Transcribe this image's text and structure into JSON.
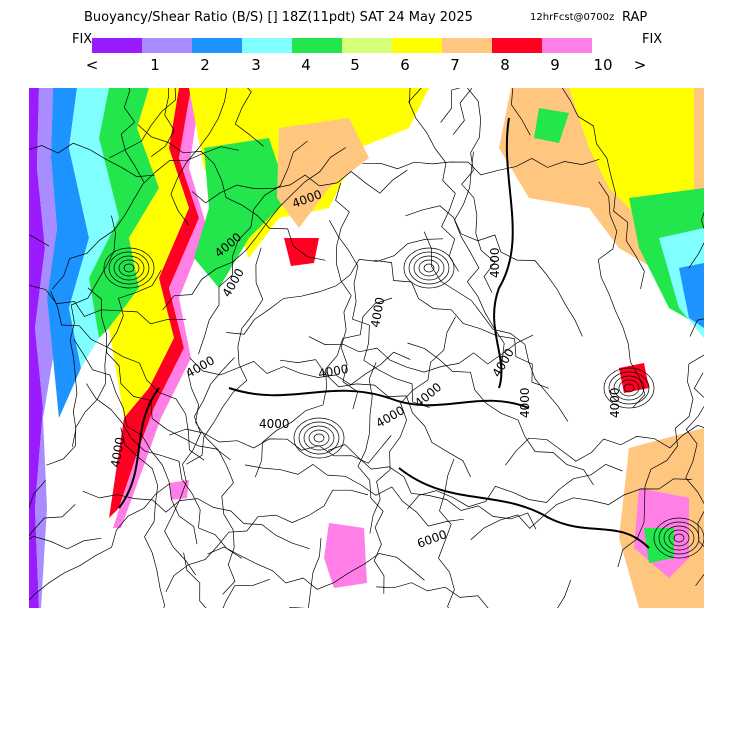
{
  "header": {
    "title": "Buoyancy/Shear Ratio (B/S) [] 18Z(11pdt) SAT 24 May 2025",
    "forecast_note": "12hrFcst@0700z",
    "model": "RAP"
  },
  "legend": {
    "fix_left": "FIX",
    "fix_right": "FIX",
    "colors": [
      "#9b1bff",
      "#a98cff",
      "#1c93ff",
      "#7fffff",
      "#22e64b",
      "#d6ff7a",
      "#ffff00",
      "#ffc680",
      "#ff0022",
      "#ff7fe6"
    ],
    "ticks": [
      "<",
      "1",
      "2",
      "3",
      "4",
      "5",
      "6",
      "7",
      "8",
      "9",
      "10",
      ">"
    ]
  },
  "map": {
    "contour_labels": [
      "4000",
      "4000",
      "4000",
      "4000",
      "4000",
      "4000",
      "4000",
      "4000",
      "4000",
      "4000",
      "4000",
      "4000",
      "4000",
      "4000",
      "6000"
    ]
  }
}
